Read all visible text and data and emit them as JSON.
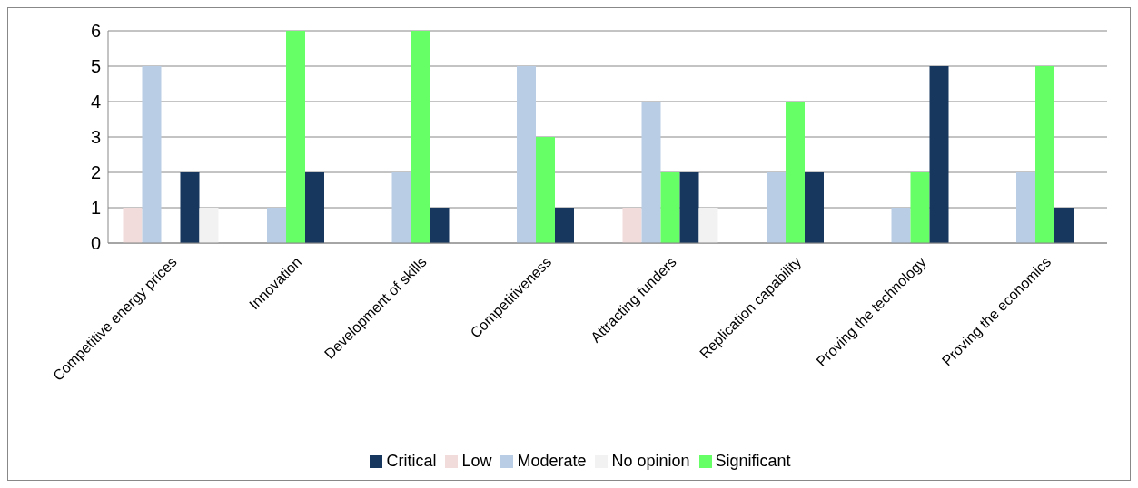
{
  "chart_data": {
    "type": "bar",
    "categories": [
      "Competitive energy prices",
      "Innovation",
      "Development of skills",
      "Competitiveness",
      "Attracting funders",
      "Replication capability",
      "Proving the technology",
      "Proving the economics"
    ],
    "series": [
      {
        "name": "Low",
        "color": "#f2dcdb",
        "values": [
          1,
          0,
          0,
          0,
          1,
          0,
          0,
          0
        ]
      },
      {
        "name": "Moderate",
        "color": "#b9cde5",
        "values": [
          5,
          1,
          2,
          5,
          4,
          2,
          1,
          2
        ]
      },
      {
        "name": "Significant",
        "color": "#66ff66",
        "values": [
          0,
          6,
          6,
          3,
          2,
          4,
          2,
          5
        ]
      },
      {
        "name": "Critical",
        "color": "#17375e",
        "values": [
          2,
          2,
          1,
          1,
          2,
          2,
          5,
          1
        ]
      },
      {
        "name": "No opinion",
        "color": "#f2f2f2",
        "values": [
          1,
          0,
          0,
          0,
          1,
          0,
          0,
          0
        ]
      }
    ],
    "ylim": [
      0,
      6
    ],
    "yticks": [
      0,
      1,
      2,
      3,
      4,
      5,
      6
    ],
    "grid": "y",
    "legend": "bottom"
  }
}
